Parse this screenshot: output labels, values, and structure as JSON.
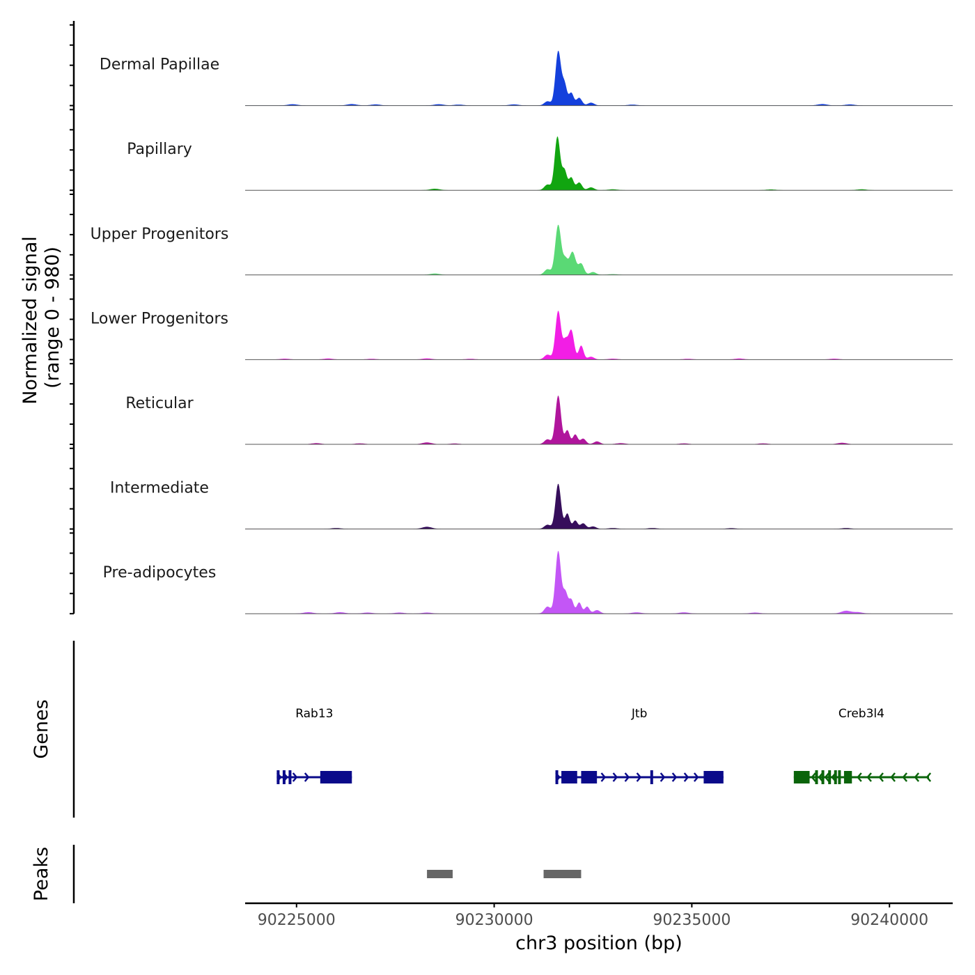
{
  "chart_data": {
    "type": "coverage",
    "region": {
      "chromosome": "chr3",
      "start": 90223700,
      "end": 90241600
    },
    "xlabel": "chr3 position (bp)",
    "xticks": [
      {
        "value": 90225000,
        "label": "90225000"
      },
      {
        "value": 90230000,
        "label": "90230000"
      },
      {
        "value": 90235000,
        "label": "90235000"
      },
      {
        "value": 90240000,
        "label": "90240000"
      }
    ],
    "ylabel_line1": "Normalized signal",
    "ylabel_line2": "(range 0 - 980)",
    "y_range": [
      0,
      980
    ],
    "tracks": [
      {
        "name": "Dermal Papillae",
        "color": "#1440dc",
        "peaks": [
          [
            90231620,
            780,
            70
          ],
          [
            90231780,
            300,
            60
          ],
          [
            90231950,
            180,
            60
          ],
          [
            90232150,
            110,
            70
          ],
          [
            90231350,
            60,
            80
          ],
          [
            90232450,
            40,
            80
          ]
        ],
        "noise": [
          [
            90224900,
            18
          ],
          [
            90226400,
            20
          ],
          [
            90227000,
            15
          ],
          [
            90228600,
            18
          ],
          [
            90229100,
            12
          ],
          [
            90230500,
            15
          ],
          [
            90233500,
            12
          ],
          [
            90238300,
            20
          ],
          [
            90239000,
            15
          ]
        ]
      },
      {
        "name": "Papillary",
        "color": "#11a510",
        "peaks": [
          [
            90231600,
            770,
            70
          ],
          [
            90231780,
            280,
            60
          ],
          [
            90231950,
            180,
            60
          ],
          [
            90232150,
            110,
            70
          ],
          [
            90231350,
            80,
            80
          ],
          [
            90232450,
            40,
            80
          ]
        ],
        "noise": [
          [
            90228500,
            20
          ],
          [
            90233000,
            12
          ],
          [
            90237000,
            10
          ],
          [
            90239300,
            12
          ]
        ]
      },
      {
        "name": "Upper Progenitors",
        "color": "#5ad975",
        "peaks": [
          [
            90231620,
            720,
            75
          ],
          [
            90231980,
            330,
            80
          ],
          [
            90231800,
            200,
            60
          ],
          [
            90232200,
            160,
            70
          ],
          [
            90231350,
            80,
            80
          ],
          [
            90232500,
            40,
            80
          ]
        ],
        "noise": [
          [
            90228500,
            18
          ],
          [
            90233000,
            10
          ]
        ]
      },
      {
        "name": "Lower Progenitors",
        "color": "#f21ee5",
        "peaks": [
          [
            90231620,
            700,
            70
          ],
          [
            90231950,
            420,
            70
          ],
          [
            90231800,
            250,
            60
          ],
          [
            90232200,
            200,
            60
          ],
          [
            90231350,
            70,
            80
          ],
          [
            90232450,
            40,
            80
          ]
        ],
        "noise": [
          [
            90224700,
            12
          ],
          [
            90225800,
            14
          ],
          [
            90226900,
            10
          ],
          [
            90228300,
            16
          ],
          [
            90229400,
            10
          ],
          [
            90233000,
            12
          ],
          [
            90234900,
            10
          ],
          [
            90236200,
            14
          ],
          [
            90238600,
            12
          ]
        ]
      },
      {
        "name": "Reticular",
        "color": "#b0159c",
        "peaks": [
          [
            90231620,
            700,
            70
          ],
          [
            90231850,
            200,
            60
          ],
          [
            90232050,
            140,
            60
          ],
          [
            90232250,
            80,
            70
          ],
          [
            90231350,
            70,
            80
          ],
          [
            90232600,
            40,
            80
          ]
        ],
        "noise": [
          [
            90225500,
            15
          ],
          [
            90226600,
            12
          ],
          [
            90228300,
            25
          ],
          [
            90229000,
            10
          ],
          [
            90233200,
            15
          ],
          [
            90234800,
            12
          ],
          [
            90236800,
            12
          ],
          [
            90238800,
            20
          ]
        ]
      },
      {
        "name": "Intermediate",
        "color": "#360e5b",
        "peaks": [
          [
            90231620,
            650,
            70
          ],
          [
            90231850,
            220,
            60
          ],
          [
            90232050,
            120,
            60
          ],
          [
            90232250,
            80,
            70
          ],
          [
            90231350,
            60,
            80
          ],
          [
            90232500,
            35,
            80
          ]
        ],
        "noise": [
          [
            90226000,
            12
          ],
          [
            90228300,
            30
          ],
          [
            90233000,
            12
          ],
          [
            90234000,
            12
          ],
          [
            90236000,
            10
          ],
          [
            90238900,
            12
          ]
        ]
      },
      {
        "name": "Pre-adipocytes",
        "color": "#c356f6",
        "peaks": [
          [
            90231620,
            900,
            70
          ],
          [
            90231800,
            300,
            60
          ],
          [
            90231950,
            200,
            60
          ],
          [
            90232150,
            160,
            60
          ],
          [
            90232350,
            100,
            60
          ],
          [
            90231350,
            100,
            80
          ],
          [
            90232600,
            50,
            80
          ]
        ],
        "noise": [
          [
            90225300,
            20
          ],
          [
            90226100,
            20
          ],
          [
            90226800,
            15
          ],
          [
            90227600,
            15
          ],
          [
            90228300,
            15
          ],
          [
            90233600,
            18
          ],
          [
            90234800,
            18
          ],
          [
            90236600,
            15
          ],
          [
            90238900,
            40
          ],
          [
            90239200,
            20
          ]
        ]
      }
    ],
    "genes_label": "Genes",
    "genes": [
      {
        "name": "Rab13",
        "strand": "+",
        "color": "#0a0a8a",
        "start": 90224500,
        "end": 90226400,
        "exons": [
          [
            90224500,
            90224560
          ],
          [
            90224650,
            90224700
          ],
          [
            90224800,
            90224850
          ],
          [
            90225600,
            90226400
          ]
        ],
        "arrows": [
          90224600,
          90224760,
          90225000,
          90225300
        ]
      },
      {
        "name": "Jtb",
        "strand": "+",
        "color": "#0a0a8a",
        "start": 90231550,
        "end": 90235800,
        "exons": [
          [
            90231550,
            90231600
          ],
          [
            90231700,
            90232100
          ],
          [
            90232200,
            90232600
          ],
          [
            90233950,
            90234020
          ],
          [
            90235300,
            90235800
          ]
        ],
        "arrows": [
          90231650,
          90232800,
          90233100,
          90233400,
          90233700,
          90234300,
          90234600,
          90234900,
          90235150
        ]
      },
      {
        "name": "Creb3l4",
        "strand": "-",
        "color": "#0a640a",
        "start": 90237580,
        "end": 90241000,
        "exons": [
          [
            90237580,
            90237980
          ],
          [
            90238120,
            90238170
          ],
          [
            90238280,
            90238330
          ],
          [
            90238450,
            90238500
          ],
          [
            90238600,
            90238650
          ],
          [
            90238700,
            90238750
          ],
          [
            90238850,
            90239050
          ]
        ],
        "arrows": [
          90238040,
          90238220,
          90238380,
          90238550,
          90239200,
          90239450,
          90239750,
          90240050,
          90240350,
          90240650,
          90240950
        ]
      }
    ],
    "peaks_label": "Peaks",
    "peaks_color": "#666666",
    "peak_regions": [
      [
        90228300,
        90228950
      ],
      [
        90231250,
        90232200
      ]
    ]
  }
}
